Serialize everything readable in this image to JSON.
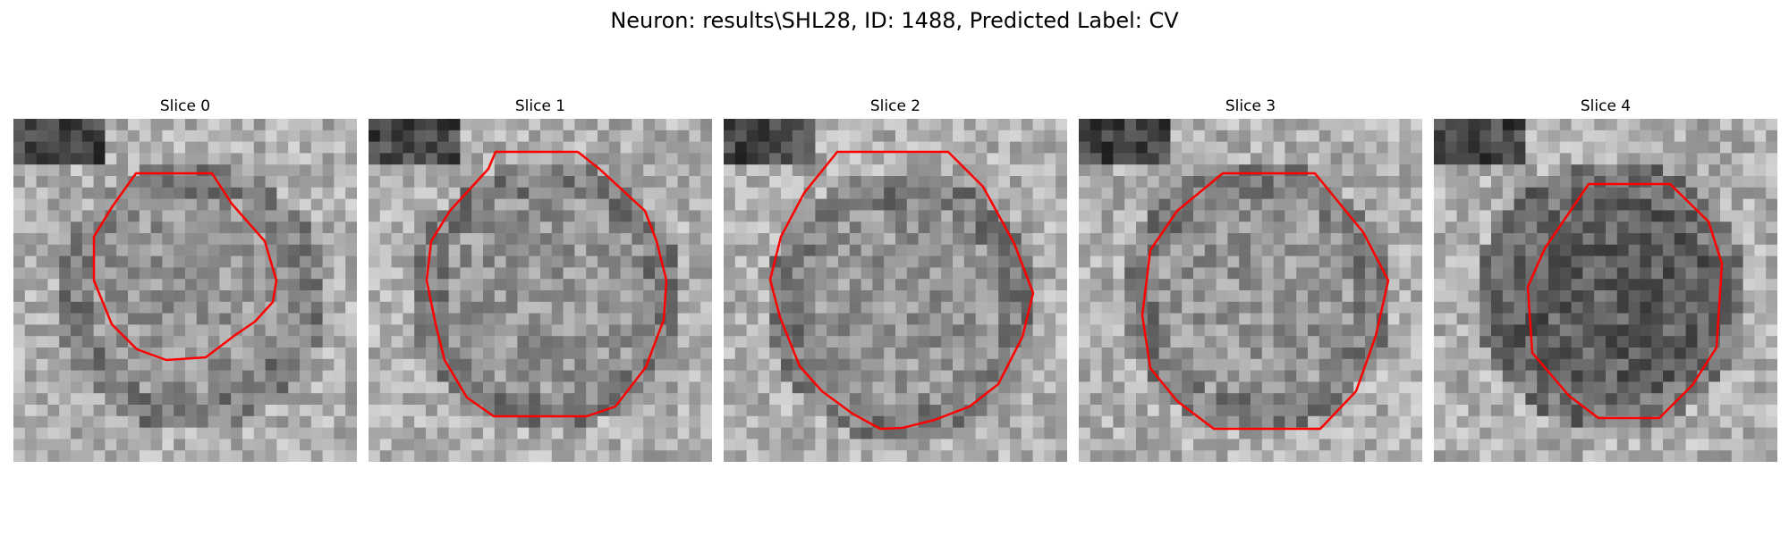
{
  "figure": {
    "title": "Neuron: results\\SHL28, ID: 1488, Predicted Label: CV"
  },
  "slices": [
    {
      "label": "Slice 0"
    },
    {
      "label": "Slice 1"
    },
    {
      "label": "Slice 2"
    },
    {
      "label": "Slice 3"
    },
    {
      "label": "Slice 4"
    }
  ],
  "colors": {
    "contour": "#ff0000",
    "colormap": "grayscale"
  }
}
